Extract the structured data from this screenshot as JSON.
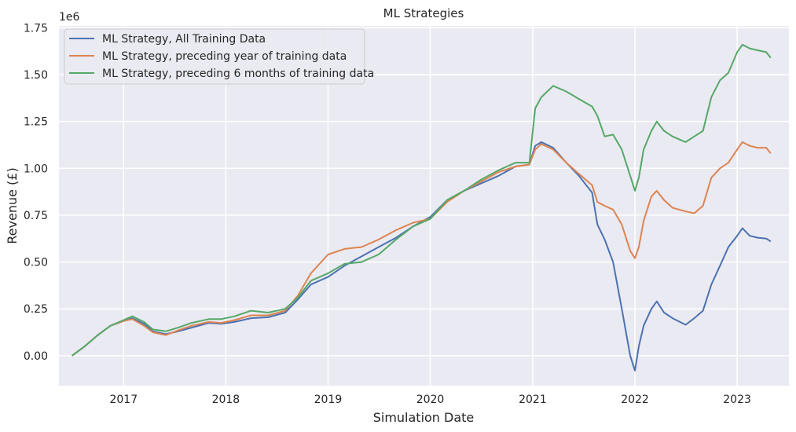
{
  "chart_data": {
    "type": "line",
    "title": "ML Strategies",
    "xlabel": "Simulation Date",
    "ylabel": "Revenue (£)",
    "y_offset_label": "1e6",
    "x_ticks": [
      "2017",
      "2018",
      "2019",
      "2020",
      "2021",
      "2022",
      "2023"
    ],
    "y_ticks": [
      "0.00",
      "0.25",
      "0.50",
      "0.75",
      "1.00",
      "1.25",
      "1.50",
      "1.75"
    ],
    "y_tick_values": [
      0,
      250000,
      500000,
      750000,
      1000000,
      1250000,
      1500000,
      1750000
    ],
    "xlim": [
      "2016-05-15",
      "2023-07-05"
    ],
    "ylim": [
      -160000,
      1760000
    ],
    "grid": true,
    "legend_position": "top-left",
    "series": [
      {
        "name": "ML Strategy, All Training Data",
        "color": "#4c72b0",
        "points": [
          [
            "2016-07-01",
            0
          ],
          [
            "2016-08-15",
            50000
          ],
          [
            "2016-10-01",
            110000
          ],
          [
            "2016-11-15",
            160000
          ],
          [
            "2017-01-01",
            185000
          ],
          [
            "2017-02-01",
            200000
          ],
          [
            "2017-03-15",
            170000
          ],
          [
            "2017-04-15",
            130000
          ],
          [
            "2017-06-01",
            115000
          ],
          [
            "2017-07-15",
            130000
          ],
          [
            "2017-09-01",
            150000
          ],
          [
            "2017-11-01",
            175000
          ],
          [
            "2017-12-15",
            170000
          ],
          [
            "2018-02-01",
            180000
          ],
          [
            "2018-04-01",
            200000
          ],
          [
            "2018-06-01",
            205000
          ],
          [
            "2018-08-01",
            230000
          ],
          [
            "2018-09-15",
            300000
          ],
          [
            "2018-11-01",
            380000
          ],
          [
            "2019-01-01",
            420000
          ],
          [
            "2019-03-01",
            480000
          ],
          [
            "2019-05-01",
            530000
          ],
          [
            "2019-07-01",
            580000
          ],
          [
            "2019-09-01",
            630000
          ],
          [
            "2019-11-01",
            690000
          ],
          [
            "2020-01-01",
            740000
          ],
          [
            "2020-03-01",
            830000
          ],
          [
            "2020-05-01",
            880000
          ],
          [
            "2020-07-01",
            920000
          ],
          [
            "2020-09-01",
            960000
          ],
          [
            "2020-11-01",
            1010000
          ],
          [
            "2020-12-20",
            1020000
          ],
          [
            "2021-01-10",
            1120000
          ],
          [
            "2021-02-01",
            1140000
          ],
          [
            "2021-03-15",
            1110000
          ],
          [
            "2021-05-01",
            1030000
          ],
          [
            "2021-06-15",
            960000
          ],
          [
            "2021-08-01",
            870000
          ],
          [
            "2021-08-20",
            700000
          ],
          [
            "2021-09-15",
            620000
          ],
          [
            "2021-10-15",
            500000
          ],
          [
            "2021-11-15",
            250000
          ],
          [
            "2021-12-15",
            0
          ],
          [
            "2022-01-01",
            -80000
          ],
          [
            "2022-01-15",
            50000
          ],
          [
            "2022-02-01",
            160000
          ],
          [
            "2022-03-01",
            250000
          ],
          [
            "2022-03-20",
            290000
          ],
          [
            "2022-04-15",
            230000
          ],
          [
            "2022-05-15",
            200000
          ],
          [
            "2022-07-01",
            165000
          ],
          [
            "2022-08-01",
            200000
          ],
          [
            "2022-09-01",
            240000
          ],
          [
            "2022-10-01",
            380000
          ],
          [
            "2022-11-01",
            480000
          ],
          [
            "2022-12-01",
            580000
          ],
          [
            "2023-01-01",
            640000
          ],
          [
            "2023-01-20",
            680000
          ],
          [
            "2023-02-15",
            640000
          ],
          [
            "2023-03-15",
            630000
          ],
          [
            "2023-04-15",
            625000
          ],
          [
            "2023-05-01",
            610000
          ]
        ]
      },
      {
        "name": "ML Strategy, preceding year of training data",
        "color": "#dd8452",
        "points": [
          [
            "2016-07-01",
            0
          ],
          [
            "2016-08-15",
            50000
          ],
          [
            "2016-10-01",
            110000
          ],
          [
            "2016-11-15",
            160000
          ],
          [
            "2017-01-01",
            185000
          ],
          [
            "2017-02-01",
            195000
          ],
          [
            "2017-03-15",
            160000
          ],
          [
            "2017-04-15",
            125000
          ],
          [
            "2017-06-01",
            110000
          ],
          [
            "2017-07-15",
            135000
          ],
          [
            "2017-09-01",
            160000
          ],
          [
            "2017-11-01",
            180000
          ],
          [
            "2017-12-15",
            175000
          ],
          [
            "2018-02-01",
            190000
          ],
          [
            "2018-04-01",
            215000
          ],
          [
            "2018-06-01",
            215000
          ],
          [
            "2018-08-01",
            240000
          ],
          [
            "2018-09-15",
            320000
          ],
          [
            "2018-11-01",
            440000
          ],
          [
            "2019-01-01",
            540000
          ],
          [
            "2019-03-01",
            570000
          ],
          [
            "2019-05-01",
            580000
          ],
          [
            "2019-07-01",
            620000
          ],
          [
            "2019-09-01",
            670000
          ],
          [
            "2019-11-01",
            710000
          ],
          [
            "2020-01-01",
            730000
          ],
          [
            "2020-03-01",
            820000
          ],
          [
            "2020-05-01",
            880000
          ],
          [
            "2020-07-01",
            930000
          ],
          [
            "2020-09-01",
            980000
          ],
          [
            "2020-11-01",
            1010000
          ],
          [
            "2020-12-20",
            1020000
          ],
          [
            "2021-01-10",
            1100000
          ],
          [
            "2021-02-01",
            1130000
          ],
          [
            "2021-03-15",
            1100000
          ],
          [
            "2021-05-01",
            1030000
          ],
          [
            "2021-06-15",
            970000
          ],
          [
            "2021-08-01",
            910000
          ],
          [
            "2021-08-20",
            820000
          ],
          [
            "2021-09-15",
            800000
          ],
          [
            "2021-10-15",
            780000
          ],
          [
            "2021-11-15",
            700000
          ],
          [
            "2021-12-15",
            560000
          ],
          [
            "2022-01-01",
            520000
          ],
          [
            "2022-01-15",
            580000
          ],
          [
            "2022-02-01",
            720000
          ],
          [
            "2022-03-01",
            850000
          ],
          [
            "2022-03-20",
            880000
          ],
          [
            "2022-04-15",
            830000
          ],
          [
            "2022-05-15",
            790000
          ],
          [
            "2022-07-01",
            770000
          ],
          [
            "2022-08-01",
            760000
          ],
          [
            "2022-09-01",
            800000
          ],
          [
            "2022-10-01",
            950000
          ],
          [
            "2022-11-01",
            1000000
          ],
          [
            "2022-12-01",
            1030000
          ],
          [
            "2023-01-01",
            1100000
          ],
          [
            "2023-01-20",
            1140000
          ],
          [
            "2023-02-15",
            1120000
          ],
          [
            "2023-03-15",
            1110000
          ],
          [
            "2023-04-15",
            1110000
          ],
          [
            "2023-05-01",
            1080000
          ]
        ]
      },
      {
        "name": "ML Strategy, preceding 6 months of training data",
        "color": "#55a868",
        "points": [
          [
            "2016-07-01",
            0
          ],
          [
            "2016-08-15",
            50000
          ],
          [
            "2016-10-01",
            110000
          ],
          [
            "2016-11-15",
            160000
          ],
          [
            "2017-01-01",
            190000
          ],
          [
            "2017-02-01",
            210000
          ],
          [
            "2017-03-15",
            180000
          ],
          [
            "2017-04-15",
            140000
          ],
          [
            "2017-06-01",
            130000
          ],
          [
            "2017-07-15",
            150000
          ],
          [
            "2017-09-01",
            175000
          ],
          [
            "2017-11-01",
            195000
          ],
          [
            "2017-12-15",
            195000
          ],
          [
            "2018-02-01",
            210000
          ],
          [
            "2018-04-01",
            240000
          ],
          [
            "2018-06-01",
            230000
          ],
          [
            "2018-08-01",
            250000
          ],
          [
            "2018-09-15",
            310000
          ],
          [
            "2018-11-01",
            400000
          ],
          [
            "2019-01-01",
            440000
          ],
          [
            "2019-03-01",
            490000
          ],
          [
            "2019-05-01",
            500000
          ],
          [
            "2019-07-01",
            540000
          ],
          [
            "2019-09-01",
            620000
          ],
          [
            "2019-11-01",
            690000
          ],
          [
            "2020-01-01",
            730000
          ],
          [
            "2020-03-01",
            830000
          ],
          [
            "2020-05-01",
            880000
          ],
          [
            "2020-07-01",
            940000
          ],
          [
            "2020-09-01",
            990000
          ],
          [
            "2020-11-01",
            1030000
          ],
          [
            "2020-12-20",
            1030000
          ],
          [
            "2021-01-10",
            1320000
          ],
          [
            "2021-02-01",
            1380000
          ],
          [
            "2021-03-15",
            1440000
          ],
          [
            "2021-05-01",
            1410000
          ],
          [
            "2021-06-15",
            1370000
          ],
          [
            "2021-08-01",
            1330000
          ],
          [
            "2021-08-20",
            1280000
          ],
          [
            "2021-09-15",
            1170000
          ],
          [
            "2021-10-15",
            1180000
          ],
          [
            "2021-11-15",
            1100000
          ],
          [
            "2021-12-15",
            960000
          ],
          [
            "2022-01-01",
            880000
          ],
          [
            "2022-01-15",
            950000
          ],
          [
            "2022-02-01",
            1100000
          ],
          [
            "2022-03-01",
            1200000
          ],
          [
            "2022-03-20",
            1250000
          ],
          [
            "2022-04-15",
            1200000
          ],
          [
            "2022-05-15",
            1170000
          ],
          [
            "2022-07-01",
            1140000
          ],
          [
            "2022-08-01",
            1170000
          ],
          [
            "2022-09-01",
            1200000
          ],
          [
            "2022-10-01",
            1380000
          ],
          [
            "2022-11-01",
            1470000
          ],
          [
            "2022-12-01",
            1510000
          ],
          [
            "2023-01-01",
            1620000
          ],
          [
            "2023-01-20",
            1660000
          ],
          [
            "2023-02-15",
            1640000
          ],
          [
            "2023-03-15",
            1630000
          ],
          [
            "2023-04-15",
            1620000
          ],
          [
            "2023-05-01",
            1590000
          ]
        ]
      }
    ]
  }
}
